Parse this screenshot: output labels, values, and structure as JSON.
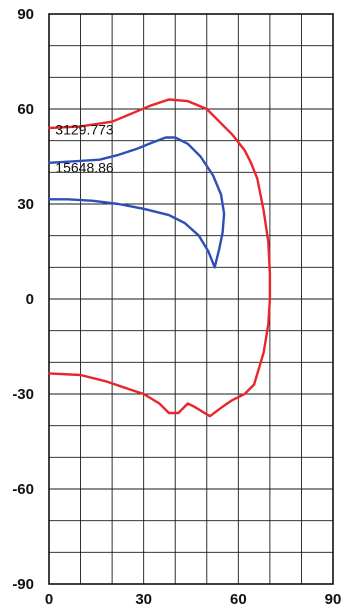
{
  "chart_data": {
    "type": "line",
    "title": "",
    "xlabel": "",
    "ylabel": "",
    "xlim": [
      0,
      90
    ],
    "ylim": [
      -90,
      90
    ],
    "grid": true,
    "x_ticks": [
      "0",
      "30",
      "60",
      "90"
    ],
    "y_ticks": [
      "90",
      "60",
      "30",
      "0",
      "-30",
      "-60",
      "-90"
    ],
    "colors": {
      "series_1": "#e8262b",
      "series_2": "#2f4fb8"
    },
    "annotations": [
      {
        "text": "3129.773",
        "x": 2,
        "y": 52
      },
      {
        "text": "15648.86",
        "x": 2,
        "y": 40
      }
    ],
    "series": [
      {
        "color": "#e8262b",
        "points": [
          [
            0,
            54
          ],
          [
            10,
            54.5
          ],
          [
            20,
            56
          ],
          [
            26,
            58.5
          ],
          [
            32,
            61
          ],
          [
            38,
            63
          ],
          [
            44,
            62.5
          ],
          [
            50,
            60
          ],
          [
            54,
            56
          ],
          [
            58,
            52
          ],
          [
            62,
            47
          ],
          [
            64,
            43
          ],
          [
            66,
            38
          ],
          [
            68,
            28
          ],
          [
            69.5,
            18
          ],
          [
            70,
            8
          ],
          [
            70,
            0
          ],
          [
            69.5,
            -8
          ],
          [
            68,
            -17
          ],
          [
            65,
            -27
          ],
          [
            62,
            -30
          ],
          [
            58,
            -32
          ],
          [
            55,
            -34
          ],
          [
            51,
            -37
          ],
          [
            46,
            -34
          ],
          [
            44,
            -33
          ],
          [
            41,
            -36
          ],
          [
            38,
            -36
          ],
          [
            35,
            -33
          ],
          [
            30,
            -30
          ],
          [
            24,
            -28
          ],
          [
            18,
            -26
          ],
          [
            10,
            -24
          ],
          [
            0,
            -23.5
          ]
        ]
      },
      {
        "color": "#2f4fb8",
        "points": [
          [
            0,
            43
          ],
          [
            8,
            43.5
          ],
          [
            16,
            44
          ],
          [
            22,
            45.5
          ],
          [
            28,
            47.5
          ],
          [
            33,
            49.5
          ],
          [
            37,
            51
          ],
          [
            40,
            51
          ],
          [
            44,
            49
          ],
          [
            48,
            45
          ],
          [
            52,
            39
          ],
          [
            54.5,
            33
          ],
          [
            55.5,
            27
          ],
          [
            55,
            21
          ],
          [
            54,
            16
          ],
          [
            52.5,
            10
          ],
          [
            50.5,
            15
          ],
          [
            47.5,
            20
          ],
          [
            43,
            24
          ],
          [
            38,
            26.5
          ],
          [
            30,
            28.5
          ],
          [
            22,
            30
          ],
          [
            14,
            31
          ],
          [
            6,
            31.5
          ],
          [
            0,
            31.5
          ]
        ]
      }
    ]
  }
}
